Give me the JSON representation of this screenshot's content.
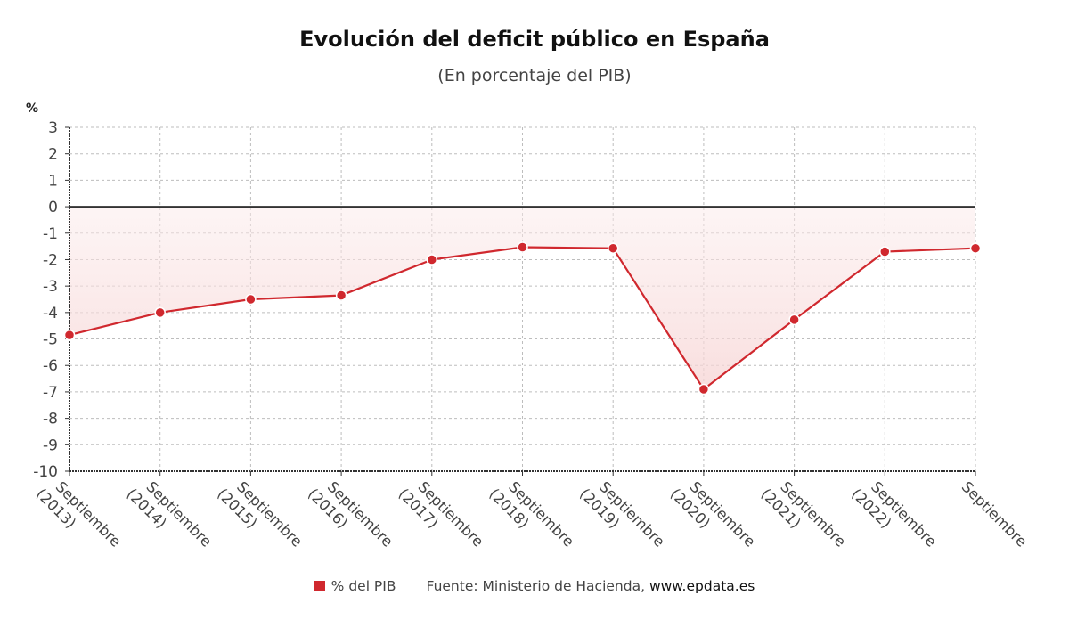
{
  "header": {
    "title": "Evolución del deficit público en España",
    "subtitle": "(En porcentaje del PIB)"
  },
  "chart_data": {
    "type": "line",
    "title": "Evolución del deficit público en España",
    "subtitle": "(En porcentaje del PIB)",
    "ylabel": "%",
    "xlabel": "",
    "ylim": [
      -10,
      3
    ],
    "yticks": [
      3,
      2,
      1,
      0,
      -1,
      -2,
      -3,
      -4,
      -5,
      -6,
      -7,
      -8,
      -9,
      -10
    ],
    "grid": true,
    "area_fill": true,
    "categories": [
      [
        "Septiembre",
        "(2013)"
      ],
      [
        "Septiembre",
        "(2014)"
      ],
      [
        "Septiembre",
        "(2015)"
      ],
      [
        "Septiembre",
        "(2016)"
      ],
      [
        "Septiembre",
        "(2017)"
      ],
      [
        "Septiembre",
        "(2018)"
      ],
      [
        "Septiembre",
        "(2019)"
      ],
      [
        "Septiembre",
        "(2020)"
      ],
      [
        "Septiembre",
        "(2021)"
      ],
      [
        "Septiembre",
        "(2022)"
      ],
      [
        "Septiembre",
        ""
      ]
    ],
    "series": [
      {
        "name": "% del PIB",
        "color": "#d0282e",
        "values": [
          -4.85,
          -4.0,
          -3.5,
          -3.35,
          -2.0,
          -1.53,
          -1.57,
          -6.9,
          -4.27,
          -1.7,
          -1.57
        ]
      }
    ],
    "legend_position": "bottom-center",
    "source": "Fuente: Ministerio de Hacienda,",
    "source_site": "www.epdata.es"
  },
  "legend": {
    "series_label": "% del PIB",
    "source": "Fuente: Ministerio de Hacienda,",
    "site": "www.epdata.es"
  },
  "axis": {
    "unit_label": "%"
  }
}
